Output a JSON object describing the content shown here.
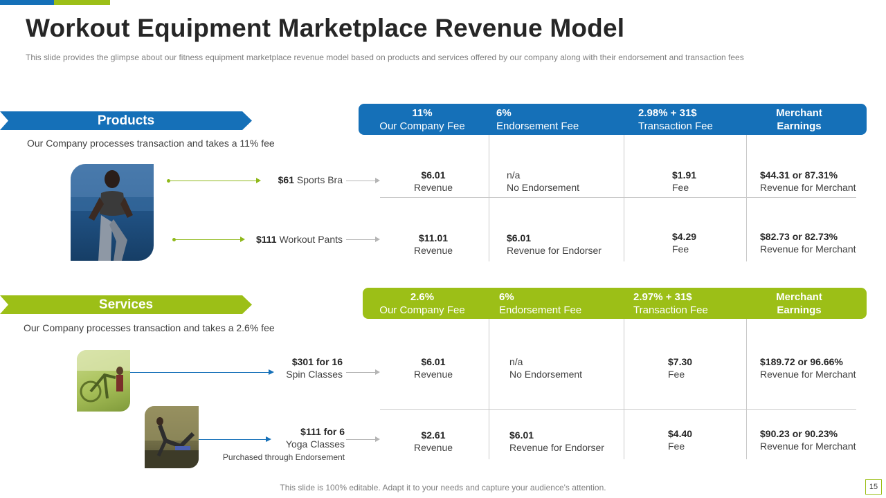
{
  "slide": {
    "title": "Workout Equipment Marketplace Revenue Model",
    "subtitle": "This slide provides  the glimpse about our fitness equipment marketplace revenue  model based on products and services offered  by our company along with their endorsement  and transaction fees",
    "footer": "This slide is 100% editable. Adapt it to your needs and capture your audience's attention.",
    "page_number": "15"
  },
  "colors": {
    "blue": "#1570b8",
    "green": "#9cbf17"
  },
  "products": {
    "banner": "Products",
    "description": "Our Company processes transaction and takes a 11% fee",
    "image": "woman-running-photo",
    "header": [
      {
        "value": "11%",
        "label": "Our Company Fee"
      },
      {
        "value": "6%",
        "label": "Endorsement Fee"
      },
      {
        "value": "2.98% + 31$",
        "label": "Transaction Fee"
      },
      {
        "value": "Merchant",
        "label": "Earnings"
      }
    ],
    "items": [
      {
        "price": "$61",
        "name": "Sports Bra",
        "cells": [
          {
            "value": "$6.01",
            "note": "Revenue"
          },
          {
            "value": "n/a",
            "note": "No Endorsement"
          },
          {
            "value": "$1.91",
            "note": "Fee"
          },
          {
            "value": "$44.31 or 87.31%",
            "note": "Revenue for Merchant"
          }
        ]
      },
      {
        "price": "$111",
        "name": "Workout Pants",
        "cells": [
          {
            "value": "$11.01",
            "note": "Revenue"
          },
          {
            "value": "$6.01",
            "note": "Revenue for Endorser"
          },
          {
            "value": "$4.29",
            "note": "Fee"
          },
          {
            "value": "$82.73 or 82.73%",
            "note": "Revenue for Merchant"
          }
        ]
      }
    ]
  },
  "services": {
    "banner": "Services",
    "description": "Our Company processes transaction and takes a 2.6% fee",
    "header": [
      {
        "value": "2.6%",
        "label": "Our Company Fee"
      },
      {
        "value": "6%",
        "label": "Endorsement Fee"
      },
      {
        "value": "2.97% + 31$",
        "label": "Transaction Fee"
      },
      {
        "value": "Merchant",
        "label": "Earnings"
      }
    ],
    "items": [
      {
        "price": "$301",
        "qty": "for 16",
        "name": "Spin Classes",
        "image": "spin-class-photo",
        "cells": [
          {
            "value": "$6.01",
            "note": "Revenue"
          },
          {
            "value": "n/a",
            "note": "No Endorsement"
          },
          {
            "value": "$7.30",
            "note": "Fee"
          },
          {
            "value": "$189.72 or 96.66%",
            "note": "Revenue for Merchant"
          }
        ]
      },
      {
        "price": "$111",
        "qty": "for 6",
        "name": "Yoga Classes",
        "extra": "Purchased through Endorsement",
        "image": "yoga-class-photo",
        "cells": [
          {
            "value": "$2.61",
            "note": "Revenue"
          },
          {
            "value": "$6.01",
            "note": "Revenue for Endorser"
          },
          {
            "value": "$4.40",
            "note": "Fee"
          },
          {
            "value": "$90.23 or 90.23%",
            "note": "Revenue for Merchant"
          }
        ]
      }
    ]
  }
}
